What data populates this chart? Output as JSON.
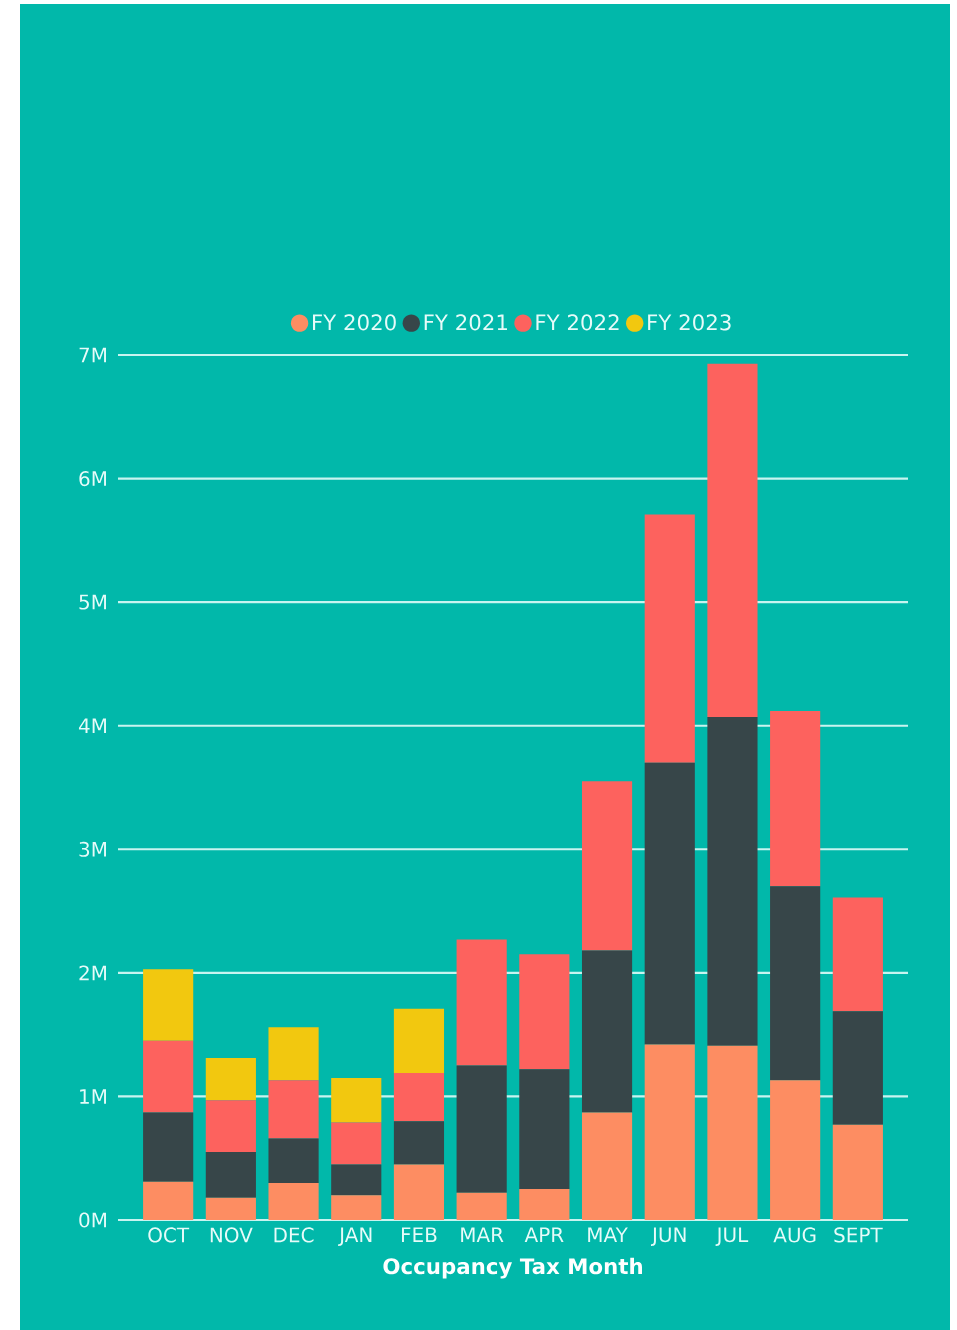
{
  "chart_data": {
    "type": "bar",
    "stacked": true,
    "xlabel": "Occupancy Tax Month",
    "categories": [
      "OCT",
      "NOV",
      "DEC",
      "JAN",
      "FEB",
      "MAR",
      "APR",
      "MAY",
      "JUN",
      "JUL",
      "AUG",
      "SEPT"
    ],
    "series": [
      {
        "name": "FY 2020",
        "color": "#fd8d62",
        "values": [
          0.31,
          0.18,
          0.3,
          0.2,
          0.45,
          0.22,
          0.25,
          0.87,
          1.42,
          1.41,
          1.13,
          0.77
        ]
      },
      {
        "name": "FY 2021",
        "color": "#374649",
        "values": [
          0.56,
          0.37,
          0.36,
          0.25,
          0.35,
          1.03,
          0.97,
          1.31,
          2.28,
          2.66,
          1.57,
          0.92
        ]
      },
      {
        "name": "FY 2022",
        "color": "#fd625e",
        "values": [
          0.58,
          0.42,
          0.47,
          0.34,
          0.39,
          1.02,
          0.93,
          1.37,
          2.01,
          2.86,
          1.42,
          0.92
        ]
      },
      {
        "name": "FY 2023",
        "color": "#f2c80f",
        "values": [
          0.58,
          0.34,
          0.43,
          0.36,
          0.52,
          null,
          null,
          null,
          null,
          null,
          null,
          null
        ]
      }
    ],
    "ylim": [
      0,
      7
    ],
    "yticks": [
      {
        "value": 0,
        "label": "0M"
      },
      {
        "value": 1,
        "label": "1M"
      },
      {
        "value": 2,
        "label": "2M"
      },
      {
        "value": 3,
        "label": "3M"
      },
      {
        "value": 4,
        "label": "4M"
      },
      {
        "value": 5,
        "label": "5M"
      },
      {
        "value": 6,
        "label": "6M"
      },
      {
        "value": 7,
        "label": "7M"
      }
    ],
    "grid": "y",
    "legend": "top"
  }
}
